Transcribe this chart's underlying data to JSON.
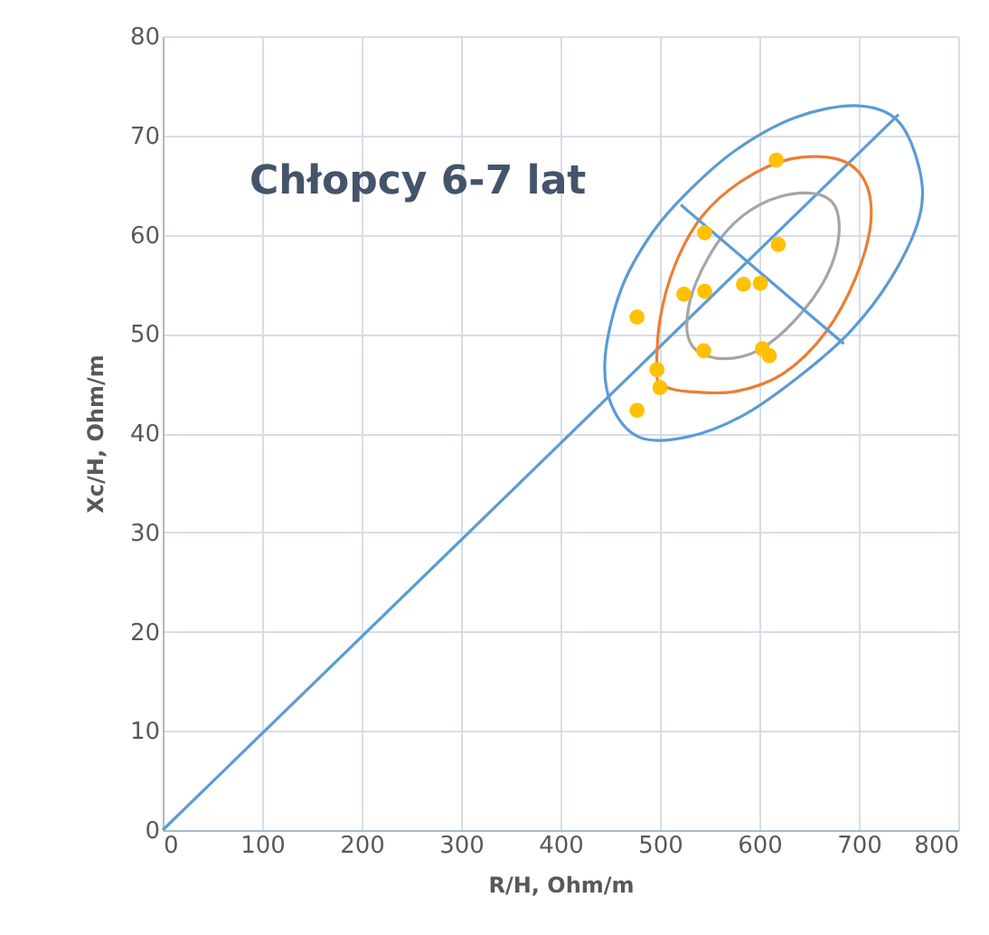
{
  "chart_data": {
    "type": "scatter",
    "title": "Chłopcy 6-7 lat",
    "xlabel": "R/H, Ohm/m",
    "ylabel": "Xc/H, Ohm/m",
    "xlim": [
      0,
      800
    ],
    "xticks": [
      0,
      100,
      200,
      300,
      400,
      500,
      600,
      700,
      800
    ],
    "ylim": [
      0,
      80
    ],
    "yticks": [
      0,
      10,
      20,
      30,
      40,
      50,
      60,
      70,
      80
    ],
    "grid": true,
    "series": [
      {
        "type": "line",
        "color": "#5b9bd5",
        "x": [
          0,
          740
        ],
        "values": [
          0,
          72.1
        ]
      },
      {
        "type": "line",
        "color": "#5b9bd5",
        "x": [
          521,
          685
        ],
        "values": [
          63.0,
          49.0
        ]
      },
      {
        "marker": "circle",
        "color": "#ffc000",
        "x": [
          617,
          545,
          619,
          524,
          545,
          584,
          601,
          477,
          544,
          603,
          610,
          497,
          500,
          477
        ],
        "values": [
          67.5,
          60.2,
          59.0,
          54.0,
          54.3,
          55.0,
          55.1,
          51.7,
          48.3,
          48.5,
          47.8,
          46.4,
          44.6,
          42.3
        ]
      }
    ]
  }
}
